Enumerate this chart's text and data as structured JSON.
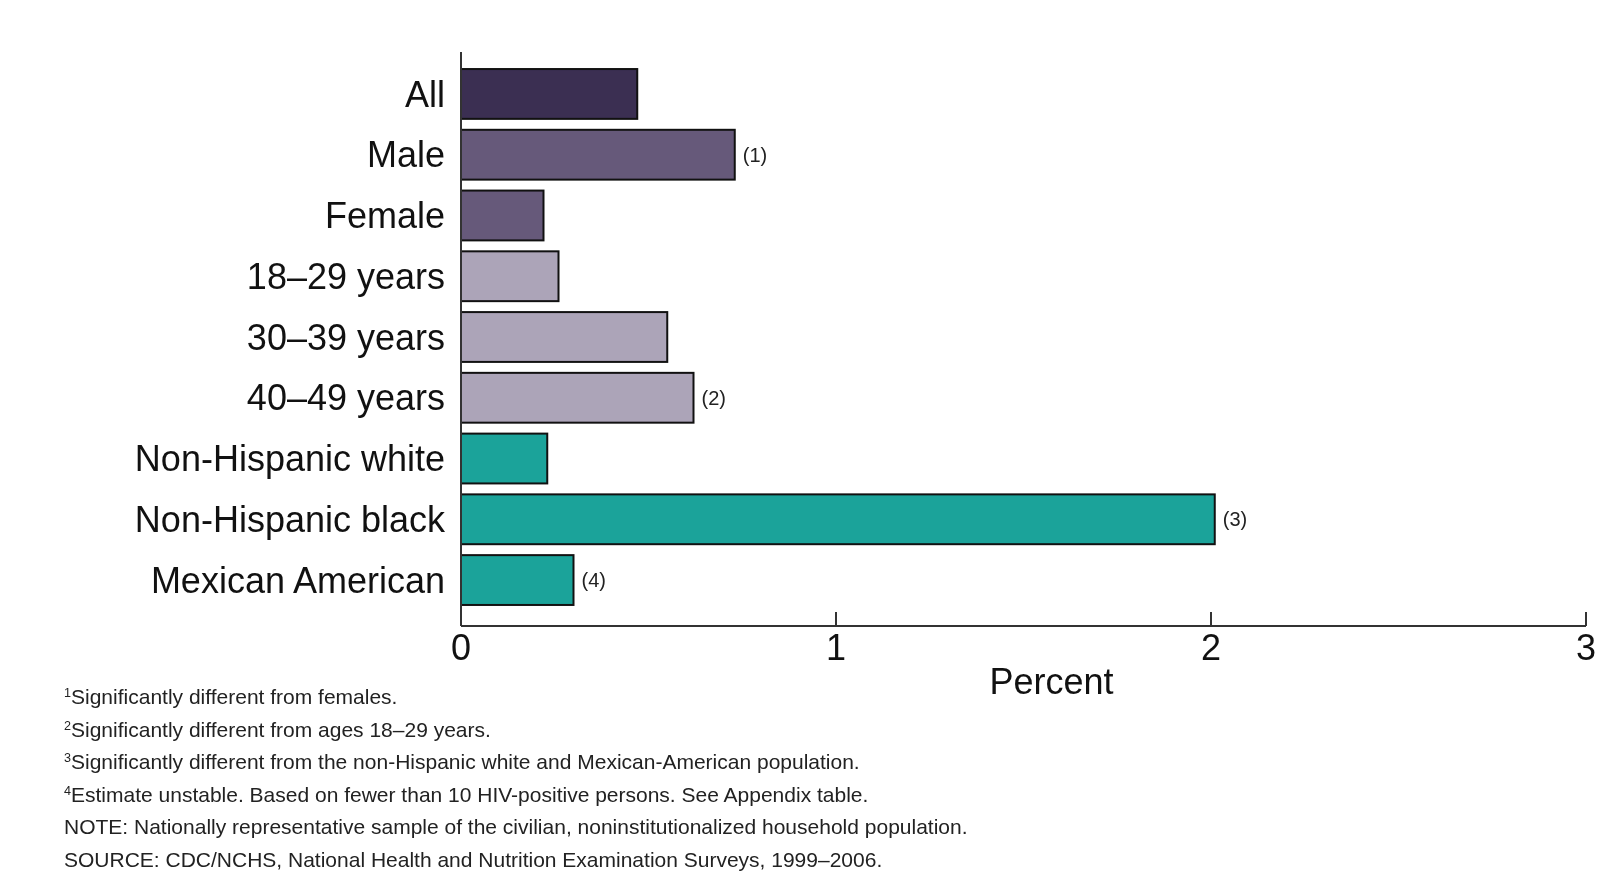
{
  "chart_data": {
    "type": "bar",
    "orientation": "horizontal",
    "xlabel": "Percent",
    "categories": [
      "All",
      "Male",
      "Female",
      "18–29 years",
      "30–39 years",
      "40–49 years",
      "Non-Hispanic white",
      "Non-Hispanic black",
      "Mexican American"
    ],
    "values": [
      0.47,
      0.73,
      0.22,
      0.26,
      0.55,
      0.62,
      0.23,
      2.01,
      0.3
    ],
    "colors": [
      "#3b2f52",
      "#66597a",
      "#66597a",
      "#aca4b8",
      "#aca4b8",
      "#aca4b8",
      "#1ba39a",
      "#1ba39a",
      "#1ba39a"
    ],
    "xlim": [
      0,
      3
    ],
    "xticks": [
      0,
      1,
      2,
      3
    ],
    "grid": false,
    "annotations": [
      {
        "text": "(1)",
        "x": 0.73,
        "y": "Male"
      },
      {
        "text": "(2)",
        "x": 0.62,
        "y": "40–49 years"
      },
      {
        "text": "(3)",
        "x": 2.01,
        "y": "Non-Hispanic black"
      },
      {
        "text": "(4)",
        "x": 0.3,
        "y": "Mexican American"
      },
      "$^{1}$Significantly different from females.",
      "$^{2}$Significantly different from ages 18–29 years.",
      "$^{3}$Significantly different from the non-Hispanic white and Mexican-American population.",
      "$^{4}$Estimate unstable. Based on fewer than 10 HIV-positive persons.  See Appendix table.",
      "NOTE: Nationally representative sample of the civilian, noninstitutionalized household population.",
      "SOURCE: CDC/NCHS, National Health and Nutrition Examination Surveys, 1999–2006."
    ]
  }
}
